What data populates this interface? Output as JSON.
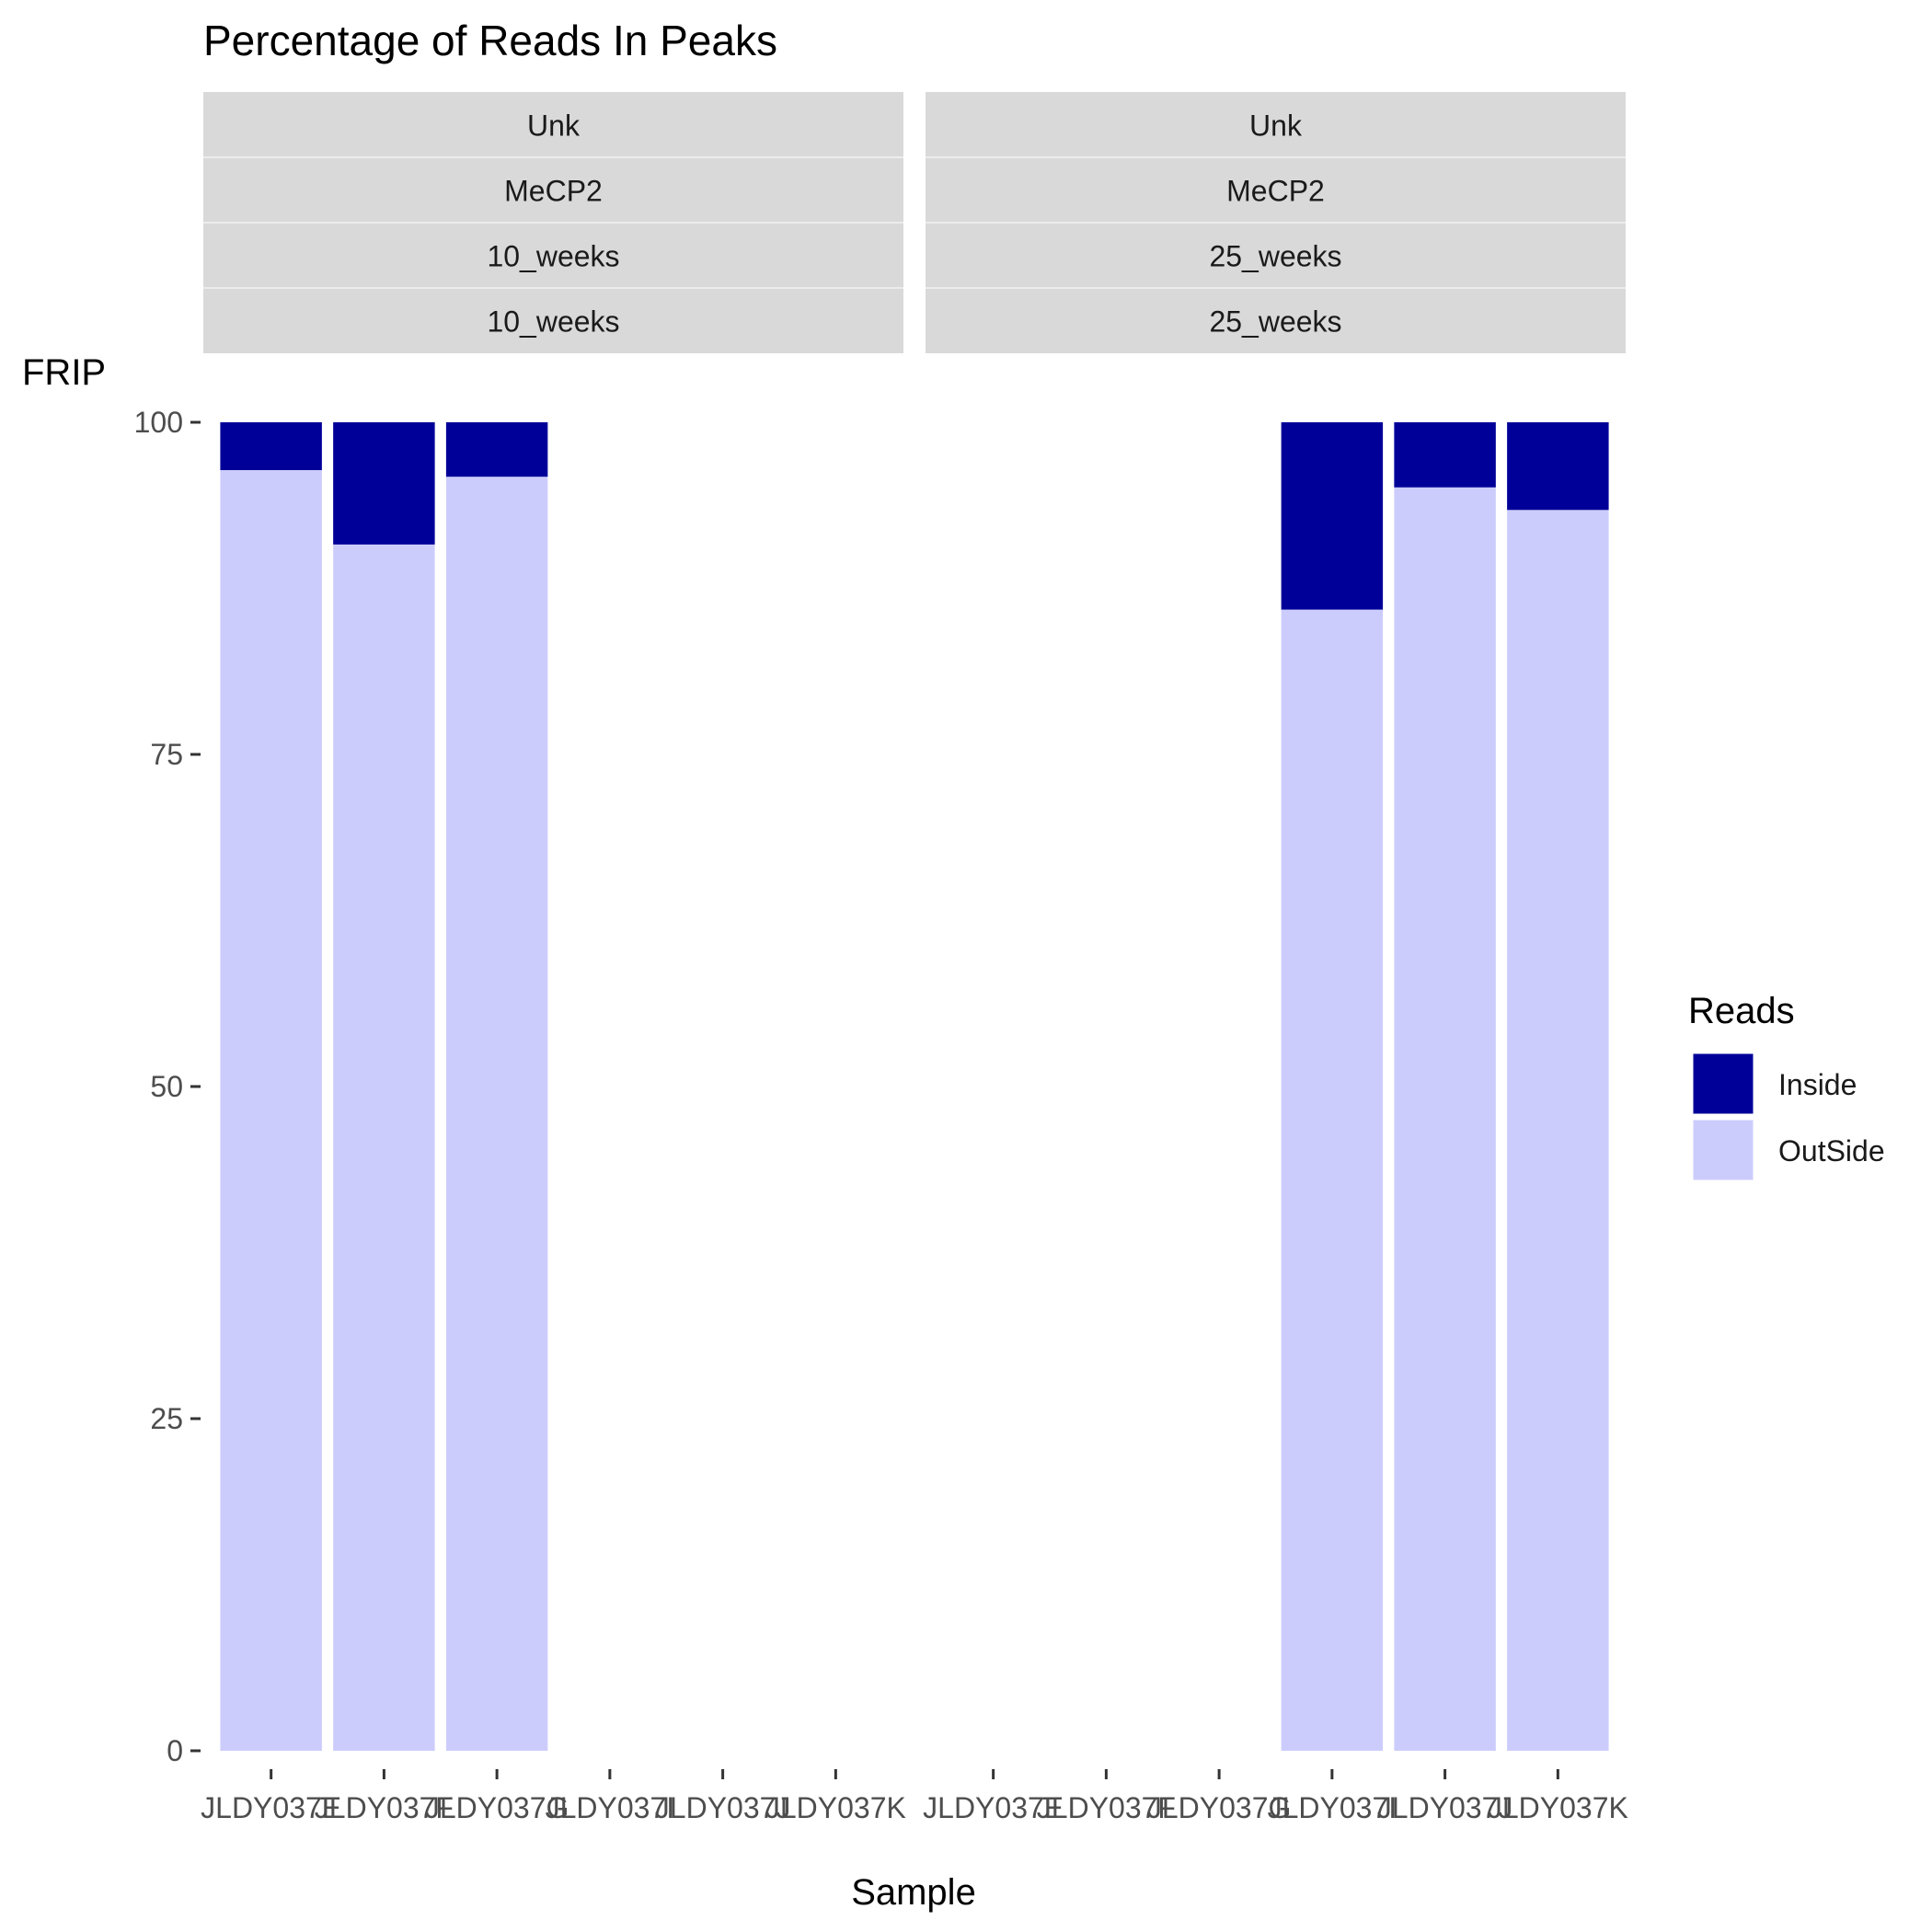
{
  "chart_data": {
    "type": "bar",
    "stacked": true,
    "title": "Percentage of Reads In Peaks",
    "xlabel": "Sample",
    "ylabel": "FRIP",
    "ylim": [
      0,
      100
    ],
    "yticks": [
      0,
      25,
      50,
      75,
      100
    ],
    "categories": [
      "JLDY037E",
      "JLDY037F",
      "JLDY037G",
      "JLDY037I",
      "JLDY037J",
      "JLDY037K"
    ],
    "legend": {
      "title": "Reads",
      "position": "right",
      "entries": [
        "Inside",
        "OutSide"
      ]
    },
    "colors": {
      "Inside": "#000099",
      "OutSide": "#ccccfc",
      "strip": "#d9d9d9"
    },
    "grid": false,
    "panels": [
      {
        "strips": [
          "Unk",
          "MeCP2",
          "10_weeks",
          "10_weeks"
        ],
        "series": [
          {
            "name": "OutSide",
            "values": [
              96.4,
              90.8,
              95.9,
              null,
              null,
              null
            ]
          },
          {
            "name": "Inside",
            "values": [
              3.6,
              9.2,
              4.1,
              null,
              null,
              null
            ]
          }
        ]
      },
      {
        "strips": [
          "Unk",
          "MeCP2",
          "25_weeks",
          "25_weeks"
        ],
        "series": [
          {
            "name": "OutSide",
            "values": [
              null,
              null,
              null,
              85.9,
              95.1,
              93.4
            ]
          },
          {
            "name": "Inside",
            "values": [
              null,
              null,
              null,
              14.1,
              4.9,
              6.6
            ]
          }
        ]
      }
    ]
  }
}
